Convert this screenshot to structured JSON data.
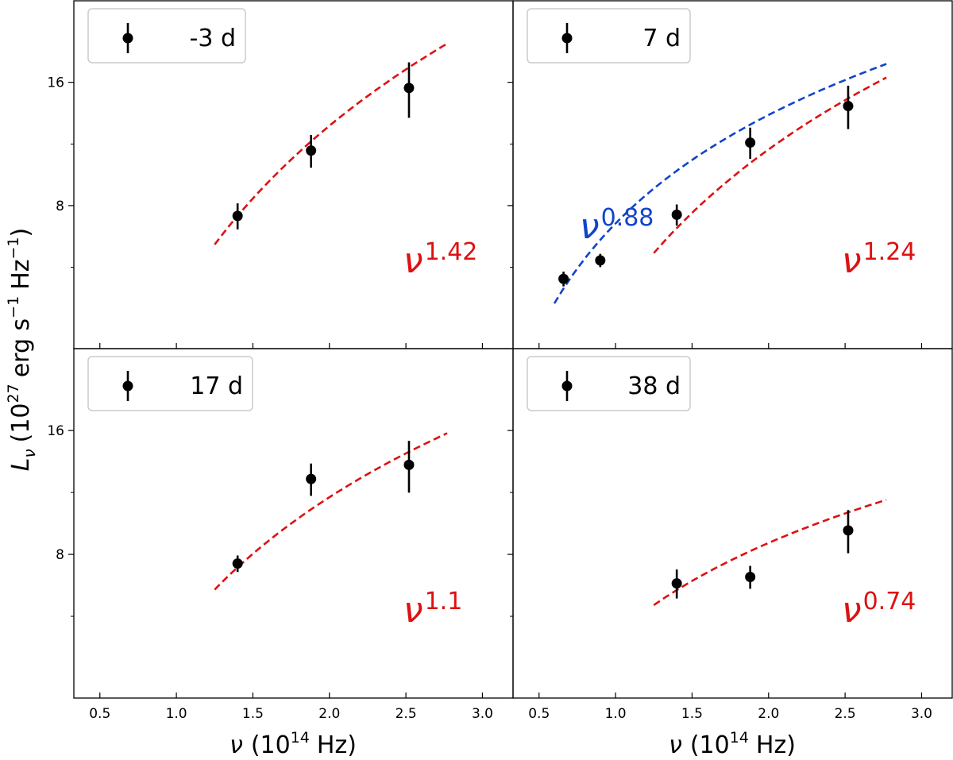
{
  "chart_data": {
    "type": "scatter",
    "layout": "2x2 panels, shared axes",
    "xlabel": "ν (10¹⁴ Hz)",
    "ylabel": "L_ν (10²⁷ erg s⁻¹ Hz⁻¹)",
    "ylabel_parts": {
      "main": "L",
      "sub": "ν",
      "unit": "(10",
      "unit_exp": "27",
      "unit_mid": "erg s",
      "unit_exp2": "−1",
      "unit_mid2": "Hz",
      "unit_exp3": "−1",
      "unit_end": ")"
    },
    "xlabel_parts": {
      "main": "ν",
      "unit": "(10",
      "unit_exp": "14",
      "unit_end": "Hz)"
    },
    "xlim": [
      0.33,
      3.2
    ],
    "ylim": [
      3.58,
      25.3
    ],
    "yscale": "log",
    "x_ticks": [
      0.5,
      1.0,
      1.5,
      2.0,
      2.5,
      3.0
    ],
    "x_tick_labels": [
      "0.5",
      "1.0",
      "1.5",
      "2.0",
      "2.5",
      "3.0"
    ],
    "y_ticks": [
      8,
      16
    ],
    "y_tick_labels": [
      "8",
      "16"
    ],
    "y_minor_ticks": [
      5.657,
      11.31
    ],
    "colors": {
      "points": "#000000",
      "red_fit": "#dd1111",
      "blue_fit": "#1144cc"
    },
    "panels": [
      {
        "legend": "-3 d",
        "points": [
          {
            "x": 1.4,
            "y": 7.55,
            "err": 0.55
          },
          {
            "x": 1.88,
            "y": 10.9,
            "err": 1.0
          },
          {
            "x": 2.52,
            "y": 15.5,
            "err": 2.4
          }
        ],
        "fits": [
          {
            "color": "red",
            "label_base": "ν",
            "label_exp": "1.42",
            "index": 1.42,
            "x_range": [
              1.25,
              2.77
            ],
            "anchor_x": 1.4,
            "anchor_y": 7.55
          }
        ]
      },
      {
        "legend": "7 d",
        "points": [
          {
            "x": 0.66,
            "y": 5.3,
            "err": 0.22
          },
          {
            "x": 0.9,
            "y": 5.88,
            "err": 0.22
          },
          {
            "x": 1.4,
            "y": 7.6,
            "err": 0.45
          },
          {
            "x": 1.88,
            "y": 11.4,
            "err": 1.0
          },
          {
            "x": 2.52,
            "y": 14.0,
            "err": 1.7
          }
        ],
        "fits": [
          {
            "color": "red",
            "label_base": "ν",
            "label_exp": "1.24",
            "index": 1.24,
            "x_range": [
              1.25,
              2.77
            ],
            "anchor_x": 1.4,
            "anchor_y": 7.05
          },
          {
            "color": "blue",
            "label_base": "ν",
            "label_exp": "0.88",
            "index": 0.88,
            "x_range": [
              0.6,
              2.77
            ],
            "anchor_x": 0.66,
            "anchor_y": 5.02
          }
        ]
      },
      {
        "legend": "17 d",
        "points": [
          {
            "x": 1.4,
            "y": 7.6,
            "err": 0.35
          },
          {
            "x": 1.88,
            "y": 12.2,
            "err": 1.1
          },
          {
            "x": 2.52,
            "y": 13.2,
            "err": 1.9
          }
        ],
        "fits": [
          {
            "color": "red",
            "label_base": "ν",
            "label_exp": "1.1",
            "index": 1.1,
            "x_range": [
              1.25,
              2.77
            ],
            "anchor_x": 1.4,
            "anchor_y": 7.44
          }
        ]
      },
      {
        "legend": "38 d",
        "points": [
          {
            "x": 1.4,
            "y": 6.8,
            "err": 0.55
          },
          {
            "x": 1.88,
            "y": 7.05,
            "err": 0.45
          },
          {
            "x": 2.52,
            "y": 9.15,
            "err": 1.1
          }
        ],
        "fits": [
          {
            "color": "red",
            "label_base": "ν",
            "label_exp": "0.74",
            "index": 0.74,
            "x_range": [
              1.25,
              2.77
            ],
            "anchor_x": 1.4,
            "anchor_y": 6.55
          }
        ]
      }
    ]
  }
}
